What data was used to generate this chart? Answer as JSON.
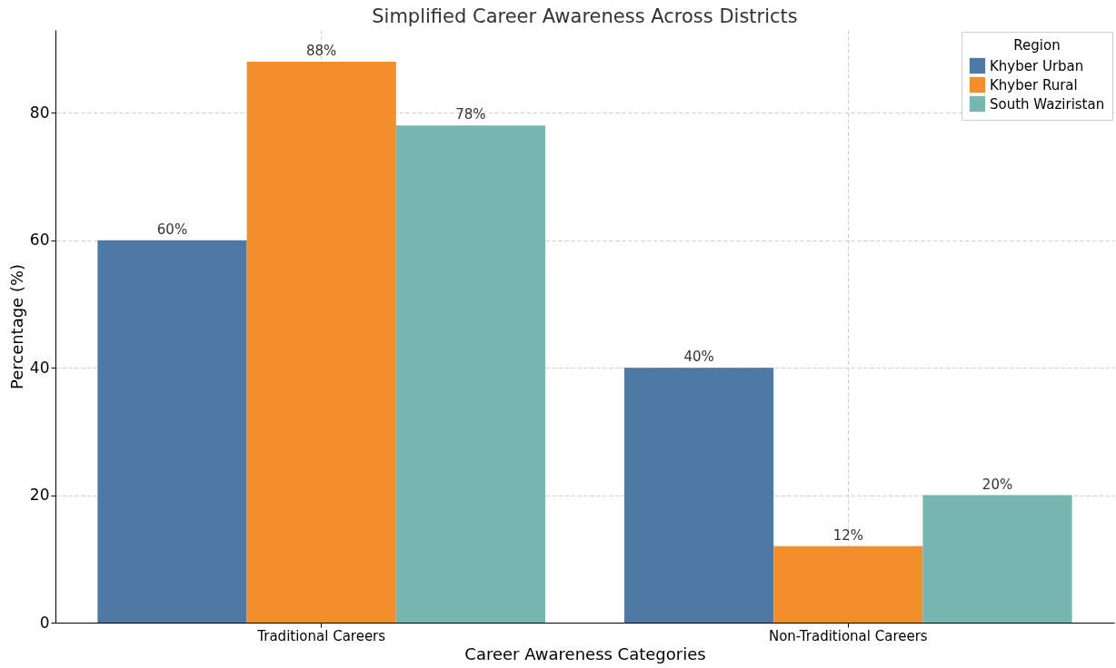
{
  "chart_data": {
    "type": "bar",
    "title": "Simplified Career Awareness Across Districts",
    "xlabel": "Career Awareness Categories",
    "ylabel": "Percentage (%)",
    "legend_title": "Region",
    "categories": [
      "Traditional Careers",
      "Non-Traditional Careers"
    ],
    "series": [
      {
        "name": "Khyber Urban",
        "color": "#4e79a5",
        "values": [
          60,
          40
        ],
        "value_labels": [
          "60%",
          "40%"
        ]
      },
      {
        "name": "Khyber Rural",
        "color": "#f28e2b",
        "values": [
          88,
          12
        ],
        "value_labels": [
          "88%",
          "12%"
        ]
      },
      {
        "name": "South Waziristan",
        "color": "#76b7b2",
        "values": [
          78,
          20
        ],
        "value_labels": [
          "78%",
          "20%"
        ]
      }
    ],
    "ylim": [
      0,
      93
    ],
    "yticks": [
      0,
      20,
      40,
      60,
      80
    ],
    "grid": true,
    "legend": "top right"
  }
}
